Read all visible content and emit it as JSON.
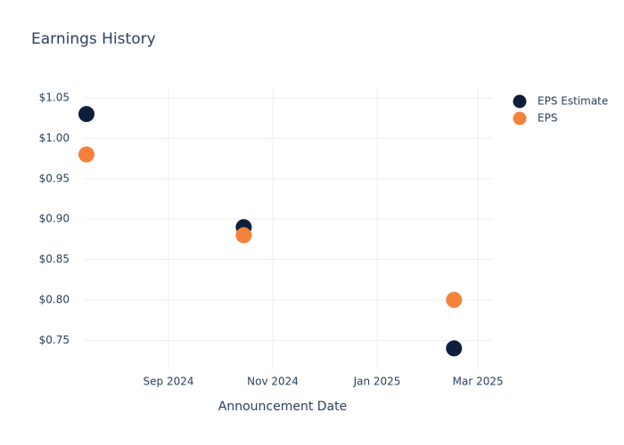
{
  "chart_data": {
    "type": "scatter",
    "title": "Earnings History",
    "x_label": "Announcement Date",
    "x": [
      "2024-07",
      "2024-10",
      "2025-02"
    ],
    "series": [
      {
        "name": "EPS Estimate",
        "color": "#0d1f3c",
        "values": [
          1.03,
          0.89,
          0.74
        ]
      },
      {
        "name": "EPS",
        "color": "#f5813a",
        "values": [
          0.98,
          0.88,
          0.8
        ]
      }
    ],
    "xlim": [
      "2024-07",
      "2025-03"
    ],
    "xticks": [
      {
        "value": "2024-09",
        "label": "Sep 2024"
      },
      {
        "value": "2024-11",
        "label": "Nov 2024"
      },
      {
        "value": "2025-01",
        "label": "Jan 2025"
      },
      {
        "value": "2025-03",
        "label": "Mar 2025"
      }
    ],
    "ylim": [
      0.714,
      1.061
    ],
    "yticks": [
      {
        "value": 0.75,
        "label": "$0.75"
      },
      {
        "value": 0.8,
        "label": "$0.80"
      },
      {
        "value": 0.85,
        "label": "$0.85"
      },
      {
        "value": 0.9,
        "label": "$0.90"
      },
      {
        "value": 0.95,
        "label": "$0.95"
      },
      {
        "value": 1.0,
        "label": "$1.00"
      },
      {
        "value": 1.05,
        "label": "$1.05"
      }
    ],
    "grid": true,
    "legend": "top-right"
  }
}
